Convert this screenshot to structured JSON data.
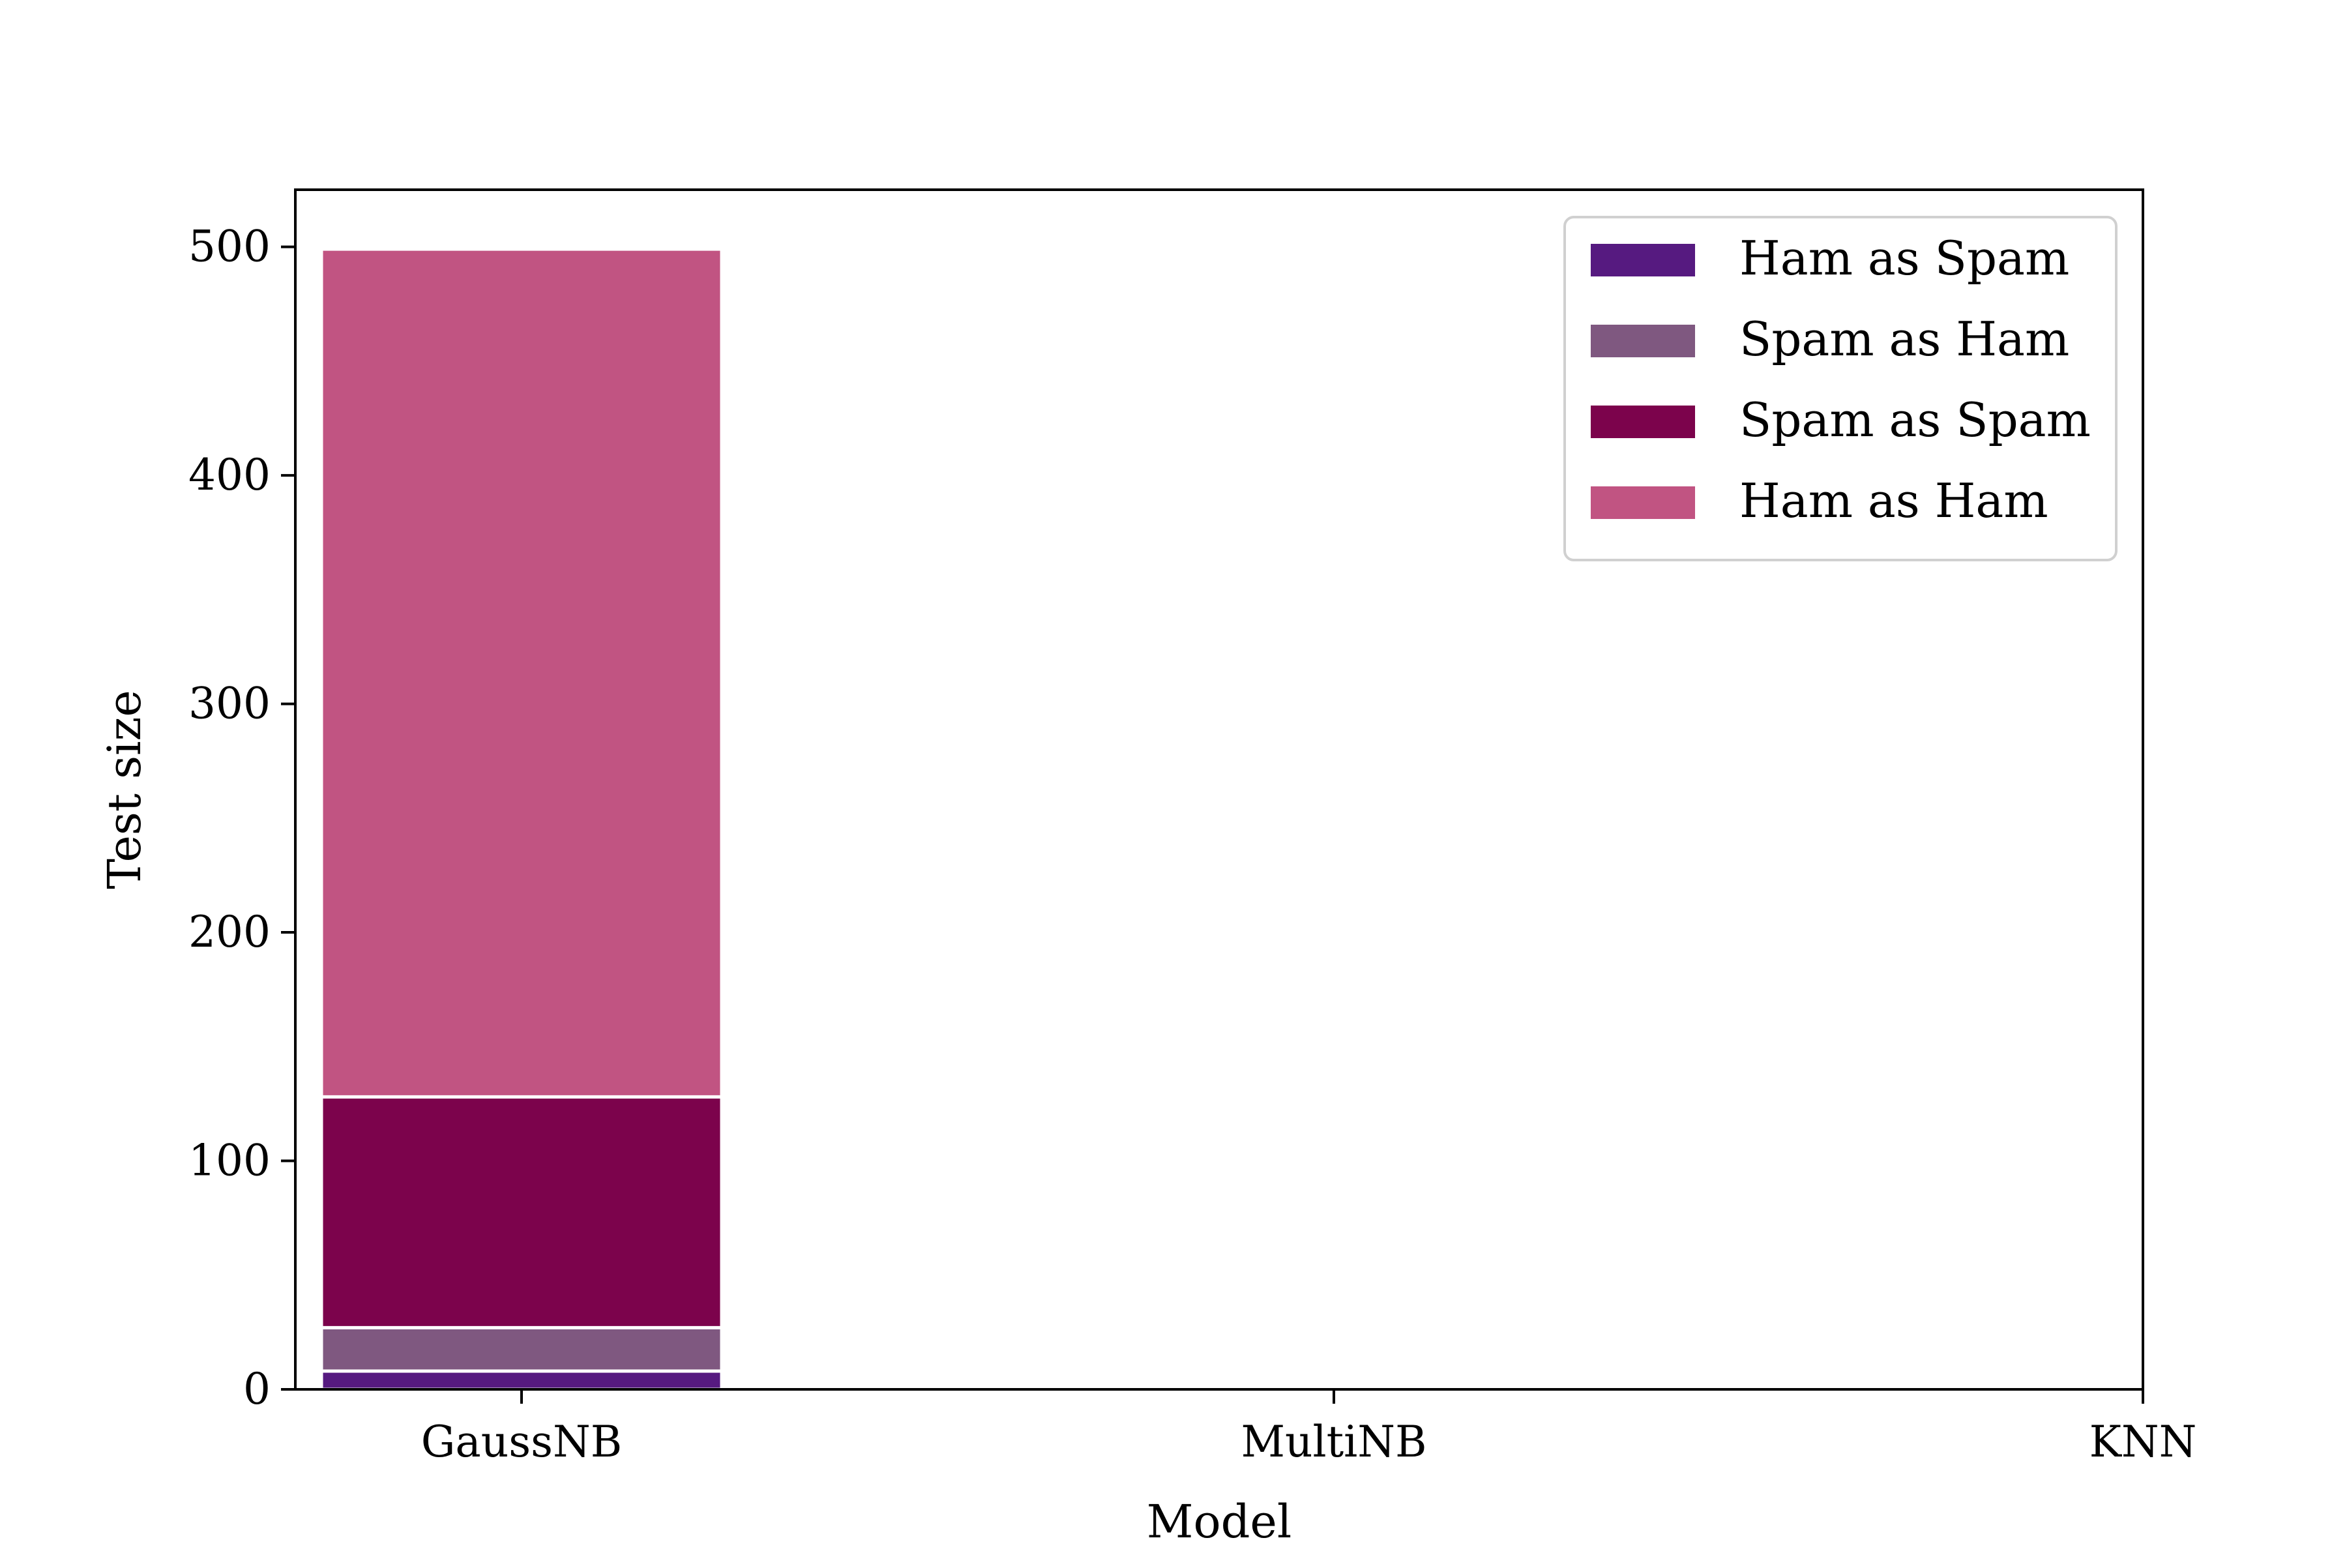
{
  "chart_data": {
    "type": "bar",
    "stacked": true,
    "categories": [
      "GaussNB",
      "MultiNB",
      "KNN"
    ],
    "series": [
      {
        "name": "Ham as Spam",
        "color": "#561a80",
        "values": [
          8,
          null,
          null
        ]
      },
      {
        "name": "Spam as Ham",
        "color": "#7f5880",
        "values": [
          19,
          null,
          null
        ]
      },
      {
        "name": "Spam as Spam",
        "color": "#7c034c",
        "values": [
          101,
          null,
          null
        ]
      },
      {
        "name": "Ham as Ham",
        "color": "#c15482",
        "values": [
          371,
          null,
          null
        ]
      }
    ],
    "xlabel": "Model",
    "ylabel": "Test size",
    "ylim": [
      0,
      525
    ],
    "yticks": [
      0,
      100,
      200,
      300,
      400,
      500
    ],
    "grid": false,
    "legend_position": "upper right"
  }
}
